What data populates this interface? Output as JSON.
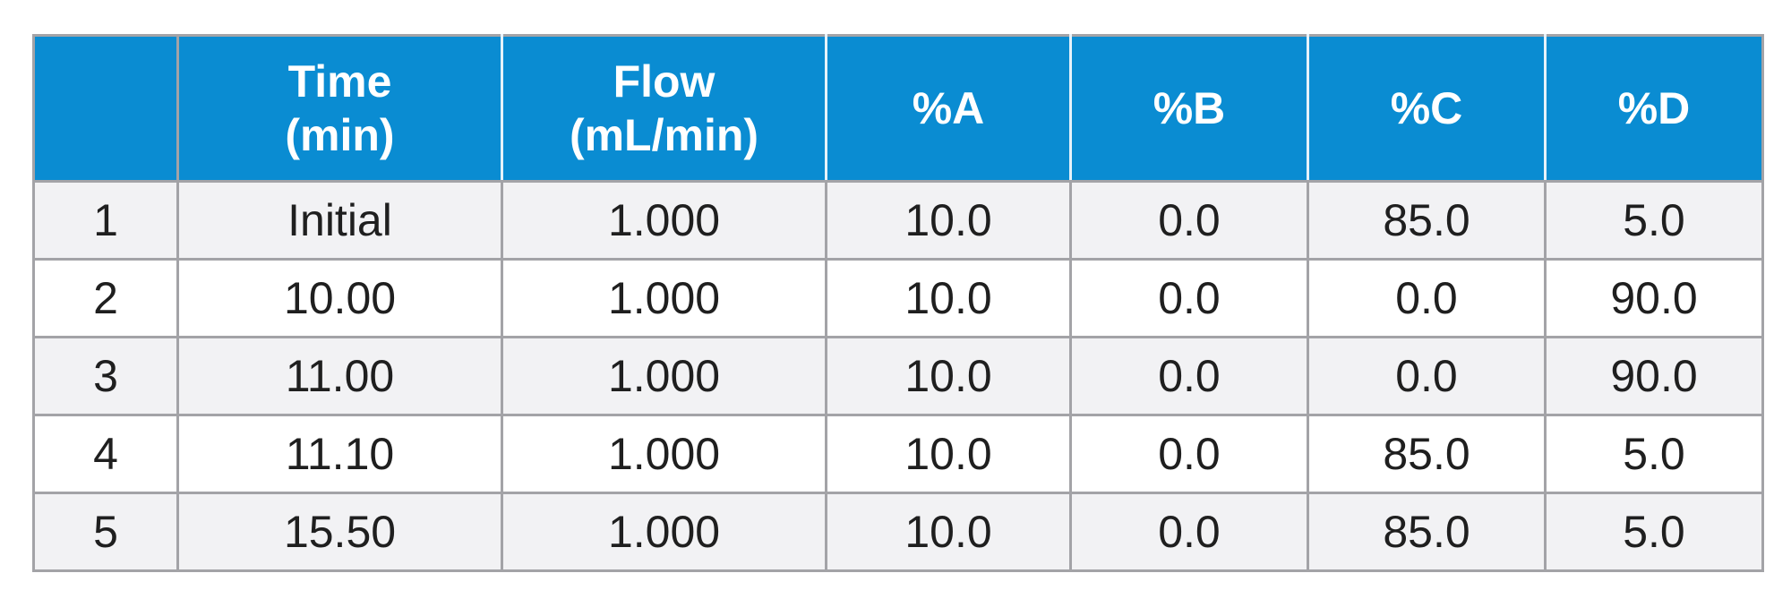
{
  "table": {
    "headers": [
      {
        "lines": [
          ""
        ]
      },
      {
        "lines": [
          "Time",
          "(min)"
        ]
      },
      {
        "lines": [
          "Flow",
          "(mL/min)"
        ]
      },
      {
        "lines": [
          "%A"
        ]
      },
      {
        "lines": [
          "%B"
        ]
      },
      {
        "lines": [
          "%C"
        ]
      },
      {
        "lines": [
          "%D"
        ]
      }
    ],
    "rows": [
      [
        "1",
        "Initial",
        "1.000",
        "10.0",
        "0.0",
        "85.0",
        "5.0"
      ],
      [
        "2",
        "10.00",
        "1.000",
        "10.0",
        "0.0",
        "0.0",
        "90.0"
      ],
      [
        "3",
        "11.00",
        "1.000",
        "10.0",
        "0.0",
        "0.0",
        "90.0"
      ],
      [
        "4",
        "11.10",
        "1.000",
        "10.0",
        "0.0",
        "85.0",
        "5.0"
      ],
      [
        "5",
        "15.50",
        "1.000",
        "10.0",
        "0.0",
        "85.0",
        "5.0"
      ]
    ]
  },
  "colors": {
    "header_bg": "#0a8cd2",
    "header_text": "#ffffff",
    "row_odd_bg": "#f2f2f4",
    "row_even_bg": "#ffffff",
    "grid": "#a3a3a7",
    "body_text": "#1f1f1f"
  }
}
